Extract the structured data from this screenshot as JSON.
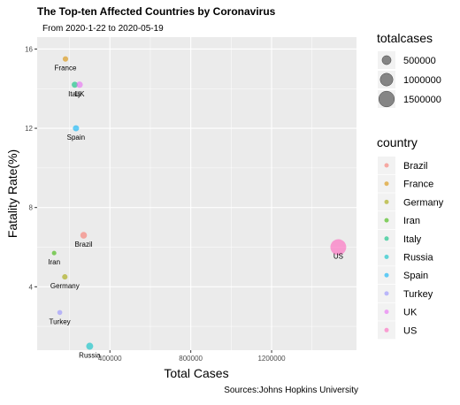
{
  "chart_data": {
    "type": "scatter",
    "title": "The Top-ten Affected Countries by Coronavirus",
    "subtitle": "From 2020-1-22 to 2020-05-19",
    "xlabel": "Total Cases",
    "ylabel": "Fatality Rate(%)",
    "caption": "Sources:Johns Hopkins University",
    "xlim": [
      40000,
      1620000
    ],
    "ylim": [
      0.8,
      16.6
    ],
    "x_ticks": [
      400000,
      800000,
      1200000
    ],
    "y_ticks": [
      4,
      8,
      12,
      16
    ],
    "grid": true,
    "size_legend": {
      "title": "totalcases",
      "entries": [
        {
          "label": "500000",
          "value": 500000
        },
        {
          "label": "1000000",
          "value": 1000000
        },
        {
          "label": "1500000",
          "value": 1500000
        }
      ]
    },
    "color_legend": {
      "title": "country",
      "entries": [
        {
          "label": "Brazil",
          "color": "#F8766D"
        },
        {
          "label": "France",
          "color": "#D89000"
        },
        {
          "label": "Germany",
          "color": "#A3A500"
        },
        {
          "label": "Iran",
          "color": "#39B600"
        },
        {
          "label": "Italy",
          "color": "#00BF7D"
        },
        {
          "label": "Russia",
          "color": "#00BFC4"
        },
        {
          "label": "Spain",
          "color": "#00B0F6"
        },
        {
          "label": "Turkey",
          "color": "#9590FF"
        },
        {
          "label": "UK",
          "color": "#E76BF3"
        },
        {
          "label": "US",
          "color": "#FF62BC"
        }
      ]
    },
    "points": [
      {
        "country": "Brazil",
        "label": "Brazil",
        "x": 270000,
        "y": 6.6,
        "totalcases": 270000,
        "color": "#F8766D"
      },
      {
        "country": "France",
        "label": "France",
        "x": 180000,
        "y": 15.5,
        "totalcases": 180000,
        "color": "#D89000"
      },
      {
        "country": "Germany",
        "label": "Germany",
        "x": 177000,
        "y": 4.5,
        "totalcases": 177000,
        "color": "#A3A500"
      },
      {
        "country": "Iran",
        "label": "Iran",
        "x": 124000,
        "y": 5.7,
        "totalcases": 124000,
        "color": "#39B600"
      },
      {
        "country": "Italy",
        "label": "Italy",
        "x": 226000,
        "y": 14.2,
        "totalcases": 226000,
        "color": "#00BF7D"
      },
      {
        "country": "Russia",
        "label": "Russia",
        "x": 300000,
        "y": 1.0,
        "totalcases": 300000,
        "color": "#00BFC4"
      },
      {
        "country": "Spain",
        "label": "Spain",
        "x": 232000,
        "y": 12.0,
        "totalcases": 232000,
        "color": "#00B0F6"
      },
      {
        "country": "Turkey",
        "label": "Turkey",
        "x": 152000,
        "y": 2.7,
        "totalcases": 152000,
        "color": "#9590FF"
      },
      {
        "country": "UK",
        "label": "UK",
        "x": 250000,
        "y": 14.2,
        "totalcases": 250000,
        "color": "#E76BF3"
      },
      {
        "country": "US",
        "label": "US",
        "x": 1530000,
        "y": 6.0,
        "totalcases": 1530000,
        "color": "#FF62BC"
      }
    ]
  }
}
